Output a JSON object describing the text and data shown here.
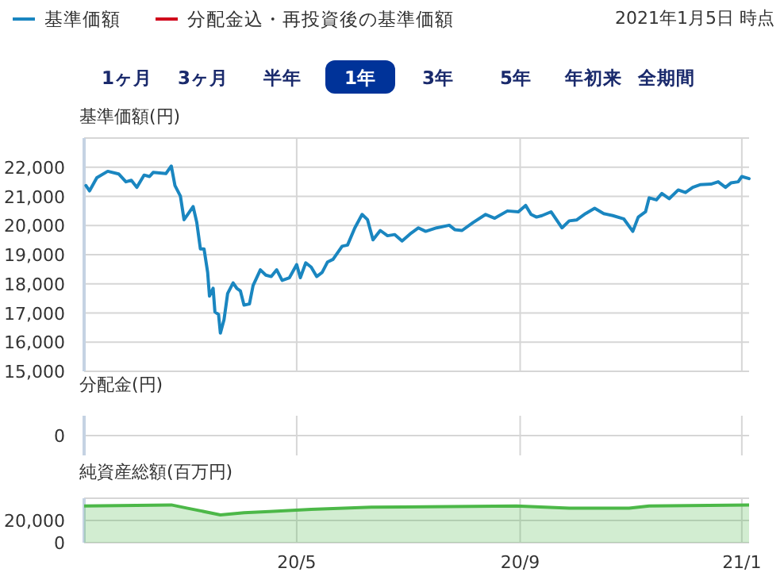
{
  "chart_data": [
    {
      "type": "line",
      "ylabel": "基準価額(円)",
      "subtitle": "2021年1月5日 時点",
      "legend": "top left",
      "grid": true,
      "tick_labels": "y",
      "annotations": [
        "1ヶ月",
        "3ヶ月",
        "半年",
        "1年",
        "3年",
        "5年",
        "年初来",
        "全期間"
      ],
      "xlim": [
        "2020-01-05",
        "2021-01-05"
      ],
      "xticks": [
        {
          "value": "2020-05-01",
          "label": null
        },
        {
          "value": "2020-09-01",
          "label": null
        },
        {
          "value": "2021-01-01",
          "label": null
        }
      ],
      "ylim": [
        15000,
        23000
      ],
      "yticks": [
        {
          "value": 15000,
          "label": "15,000"
        },
        {
          "value": 16000,
          "label": "16,000"
        },
        {
          "value": 17000,
          "label": "17,000"
        },
        {
          "value": 18000,
          "label": "18,000"
        },
        {
          "value": 19000,
          "label": "19,000"
        },
        {
          "value": 20000,
          "label": "20,000"
        },
        {
          "value": 21000,
          "label": "21,000"
        },
        {
          "value": 22000,
          "label": "22,000"
        },
        {
          "value": 23000,
          "label": null
        }
      ],
      "series": [
        {
          "name": "基準価額",
          "color": "#1a86c0",
          "x": [
            "2020-01-06",
            "2020-01-08",
            "2020-01-12",
            "2020-01-18",
            "2020-01-24",
            "2020-01-28",
            "2020-01-31",
            "2020-02-03",
            "2020-02-07",
            "2020-02-10",
            "2020-02-12",
            "2020-02-19",
            "2020-02-22",
            "2020-02-24",
            "2020-02-27",
            "2020-02-29",
            "2020-03-02",
            "2020-03-05",
            "2020-03-07",
            "2020-03-09",
            "2020-03-11",
            "2020-03-13",
            "2020-03-14",
            "2020-03-16",
            "2020-03-17",
            "2020-03-19",
            "2020-03-20",
            "2020-03-22",
            "2020-03-24",
            "2020-03-27",
            "2020-03-29",
            "2020-03-31",
            "2020-04-02",
            "2020-04-05",
            "2020-04-07",
            "2020-04-11",
            "2020-04-14",
            "2020-04-17",
            "2020-04-20",
            "2020-04-23",
            "2020-04-27",
            "2020-05-01",
            "2020-05-03",
            "2020-05-06",
            "2020-05-09",
            "2020-05-12",
            "2020-05-15",
            "2020-05-18",
            "2020-05-21",
            "2020-05-26",
            "2020-05-29",
            "2020-06-02",
            "2020-06-06",
            "2020-06-09",
            "2020-06-12",
            "2020-06-16",
            "2020-06-20",
            "2020-06-24",
            "2020-06-28",
            "2020-07-03",
            "2020-07-07",
            "2020-07-11",
            "2020-07-17",
            "2020-07-24",
            "2020-07-27",
            "2020-07-31",
            "2020-08-06",
            "2020-08-13",
            "2020-08-18",
            "2020-08-25",
            "2020-08-31",
            "2020-09-04",
            "2020-09-07",
            "2020-09-10",
            "2020-09-13",
            "2020-09-18",
            "2020-09-24",
            "2020-09-28",
            "2020-10-02",
            "2020-10-07",
            "2020-10-12",
            "2020-10-17",
            "2020-10-22",
            "2020-10-28",
            "2020-11-02",
            "2020-11-05",
            "2020-11-09",
            "2020-11-11",
            "2020-11-15",
            "2020-11-18",
            "2020-11-22",
            "2020-11-27",
            "2020-12-01",
            "2020-12-05",
            "2020-12-09",
            "2020-12-15",
            "2020-12-19",
            "2020-12-23",
            "2020-12-26",
            "2020-12-30",
            "2021-01-01",
            "2021-01-05"
          ],
          "values": [
            21370,
            21190,
            21640,
            21860,
            21770,
            21500,
            21550,
            21310,
            21730,
            21680,
            21820,
            21780,
            22040,
            21370,
            21010,
            20200,
            20380,
            20650,
            20110,
            19200,
            19200,
            18390,
            17580,
            17850,
            17040,
            16950,
            16310,
            16770,
            17670,
            18030,
            17850,
            17760,
            17270,
            17310,
            17940,
            18480,
            18300,
            18250,
            18480,
            18120,
            18210,
            18660,
            18210,
            18720,
            18570,
            18250,
            18390,
            18750,
            18840,
            19290,
            19330,
            19920,
            20380,
            20200,
            19510,
            19830,
            19650,
            19690,
            19470,
            19740,
            19920,
            19800,
            19920,
            20010,
            19860,
            19830,
            20100,
            20380,
            20250,
            20500,
            20470,
            20690,
            20380,
            20290,
            20340,
            20470,
            19920,
            20160,
            20190,
            20410,
            20590,
            20410,
            20340,
            20230,
            19800,
            20290,
            20470,
            20950,
            20880,
            21100,
            20920,
            21220,
            21130,
            21310,
            21400,
            21420,
            21500,
            21310,
            21460,
            21500,
            21680,
            21610
          ]
        },
        {
          "name": "分配金込・再投資後の基準価額",
          "color": "#d0021b"
        }
      ]
    },
    {
      "type": "other",
      "ylabel": "分配金(円)",
      "annotations": [
        "0"
      ]
    },
    {
      "type": "area",
      "ylabel": "純資産総額(百万円)",
      "grid": true,
      "xlim": [
        "2020-01-05",
        "2021-01-05"
      ],
      "xticks": [
        {
          "value": "2020-05-01",
          "label": "20/5"
        },
        {
          "value": "2020-09-01",
          "label": "20/9"
        },
        {
          "value": "2021-01-01",
          "label": "21/1"
        }
      ],
      "ylim": [
        0,
        40000
      ],
      "yticks": [
        0,
        {
          "value": 20000,
          "label": "20,000"
        },
        {
          "value": 40000,
          "label": null
        }
      ],
      "series": [
        {
          "color": "#4cb848",
          "x": [
            "2020-01-05",
            "2020-02-22",
            "2020-03-02",
            "2020-03-20",
            "2020-04-02",
            "2020-04-16",
            "2020-05-09",
            "2020-06-11",
            "2020-08-30",
            "2020-09-28",
            "2020-10-31",
            "2020-11-11",
            "2021-01-05"
          ],
          "values": [
            33000,
            34000,
            31000,
            25000,
            27000,
            28000,
            30000,
            32000,
            33000,
            31000,
            31000,
            33000,
            34000
          ]
        }
      ]
    }
  ]
}
